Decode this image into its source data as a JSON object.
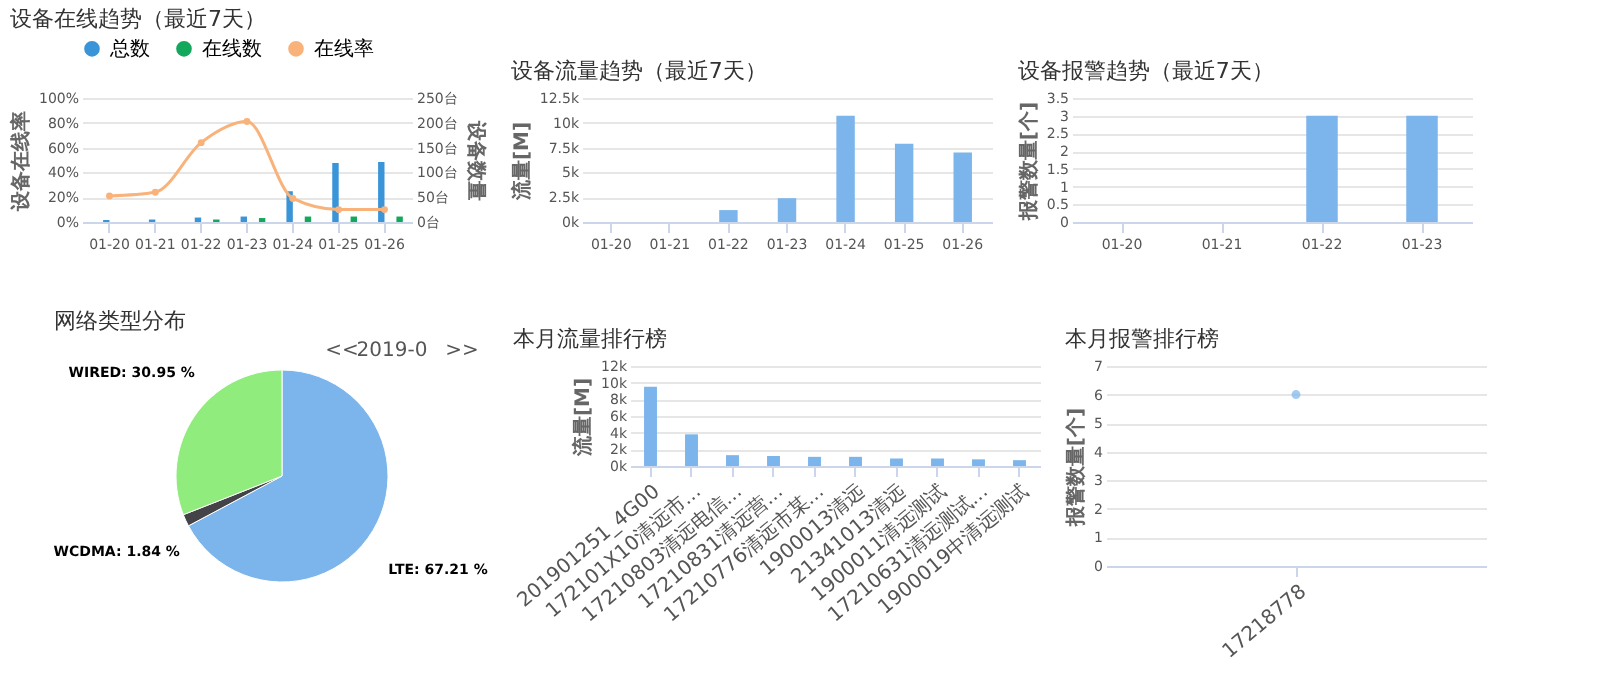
{
  "chart_data": [
    {
      "type": "bar",
      "title": "设备在线趋势（最近7天）",
      "categories": [
        "01-20",
        "01-21",
        "01-22",
        "01-23",
        "01-24",
        "01-25",
        "01-26"
      ],
      "series": [
        {
          "name": "总数",
          "color": "#3a95d8",
          "axis": "y2",
          "values": [
            4,
            5,
            9,
            11,
            62,
            119,
            121
          ]
        },
        {
          "name": "在线数",
          "color": "#13a85c",
          "axis": "y2",
          "values": [
            0,
            0,
            5,
            8,
            11,
            11,
            11
          ]
        },
        {
          "name": "在线率",
          "color": "#f9b27a",
          "type": "line",
          "values": [
            21,
            24,
            64,
            81,
            19,
            10,
            10
          ]
        }
      ],
      "ylabel": "设备在线率",
      "y2label": "设备数量",
      "ylim": [
        0,
        100
      ],
      "yticks": [
        {
          "value": 0,
          "label": "0%"
        },
        {
          "value": 20,
          "label": "20%"
        },
        {
          "value": 40,
          "label": "40%"
        },
        {
          "value": 60,
          "label": "60%"
        },
        {
          "value": 80,
          "label": "80%"
        },
        {
          "value": 100,
          "label": "100%"
        }
      ],
      "y2lim": [
        0,
        250
      ],
      "y2ticks": [
        {
          "value": 0,
          "label": "0台"
        },
        {
          "value": 50,
          "label": "50台"
        },
        {
          "value": 100,
          "label": "100台"
        },
        {
          "value": 150,
          "label": "150台"
        },
        {
          "value": 200,
          "label": "200台"
        },
        {
          "value": 250,
          "label": "250台"
        }
      ],
      "legend": "top",
      "marker": "circle",
      "grid": "y"
    },
    {
      "type": "bar",
      "title": "设备流量趋势（最近7天）",
      "categories": [
        "01-20",
        "01-21",
        "01-22",
        "01-23",
        "01-24",
        "01-25",
        "01-26"
      ],
      "series": [
        {
          "color": "#7cb5ec",
          "values": [
            0,
            0,
            1200,
            2400,
            10700,
            7900,
            7000
          ]
        }
      ],
      "ylabel": "流量[M]",
      "ylim": [
        0,
        12500
      ],
      "yticks": [
        {
          "value": 0,
          "label": "0k"
        },
        {
          "value": 2500,
          "label": "2.5k"
        },
        {
          "value": 5000,
          "label": "5k"
        },
        {
          "value": 7500,
          "label": "7.5k"
        },
        {
          "value": 10000,
          "label": "10k"
        },
        {
          "value": 12500,
          "label": "12.5k"
        }
      ],
      "grid": "y"
    },
    {
      "type": "bar",
      "title": "设备报警趋势（最近7天）",
      "categories": [
        "01-20",
        "01-21",
        "01-22",
        "01-23"
      ],
      "series": [
        {
          "color": "#7cb5ec",
          "values": [
            0,
            0,
            3,
            3
          ]
        }
      ],
      "ylabel": "报警数量[个]",
      "ylim": [
        0,
        3.5
      ],
      "yticks": [
        0,
        0.5,
        1,
        1.5,
        2,
        2.5,
        3,
        3.5
      ],
      "grid": "y"
    },
    {
      "type": "pie",
      "title": "网络类型分布",
      "categories": [
        "LTE",
        "WCDMA",
        "WIRED"
      ],
      "values": [
        67.21,
        1.84,
        30.95
      ],
      "colors": [
        "#7cb5ec",
        "#434348",
        "#90ed7d"
      ],
      "value_labels": [
        "67.21 %",
        "1.84 %",
        "30.95 %"
      ],
      "annotations": [
        "<<",
        "2019-0",
        ">>"
      ]
    },
    {
      "type": "bar",
      "title": "本月流量排行榜",
      "categories": [
        "201901251_4G00",
        "172101X10清远市...",
        "17210803清远电信...",
        "17210831清远营...",
        "17210776清远市某...",
        "1900013清远",
        "21341013清远",
        "1900011清远测试",
        "17210631清远测试...",
        "1900019中清远测试"
      ],
      "series": [
        {
          "color": "#7cb5ec",
          "values": [
            9500,
            3800,
            1300,
            1200,
            1100,
            1100,
            900,
            900,
            800,
            700
          ]
        }
      ],
      "ylabel": "流量[M]",
      "ylim": [
        0,
        12000
      ],
      "yticks": [
        {
          "value": 0,
          "label": "0k"
        },
        {
          "value": 2000,
          "label": "2k"
        },
        {
          "value": 4000,
          "label": "4k"
        },
        {
          "value": 6000,
          "label": "6k"
        },
        {
          "value": 8000,
          "label": "8k"
        },
        {
          "value": 10000,
          "label": "10k"
        },
        {
          "value": 12000,
          "label": "12k"
        }
      ],
      "grid": "y"
    },
    {
      "type": "scatter",
      "title": "本月报警排行榜",
      "categories": [
        "17218778"
      ],
      "series": [
        {
          "color": "#7cb5ec",
          "values": [
            6
          ]
        }
      ],
      "ylabel": "报警数量[个]",
      "ylim": [
        0,
        7
      ],
      "yticks": [
        0,
        1,
        2,
        3,
        4,
        5,
        6,
        7
      ],
      "marker": "circle",
      "grid": "y"
    }
  ]
}
